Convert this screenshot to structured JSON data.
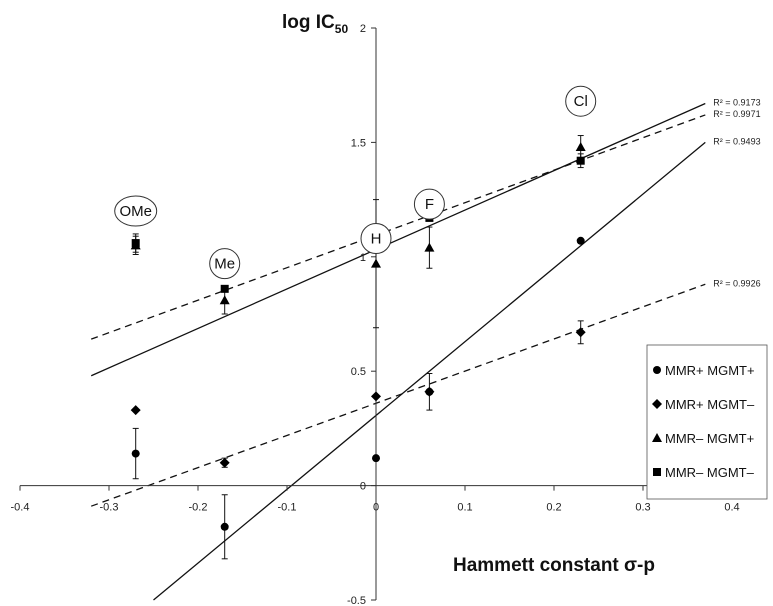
{
  "chart_data": {
    "type": "scatter",
    "xlabel": "Hammett constant σ-p",
    "ylabel": "log IC",
    "ylabel_subscript": "50",
    "xlim": [
      -0.4,
      0.4
    ],
    "ylim": [
      -0.5,
      2
    ],
    "x_ticks": [
      -0.4,
      -0.3,
      -0.2,
      -0.1,
      0,
      0.1,
      0.2,
      0.3,
      0.4
    ],
    "x_tick_labels": [
      "-0.4",
      "-0.3",
      "-0.2",
      "-0.1",
      "0",
      "0.1",
      "0.2",
      "0.3",
      "0.4"
    ],
    "y_ticks": [
      -0.5,
      0,
      0.5,
      1,
      1.5,
      2
    ],
    "y_tick_labels": [
      "-0.5",
      "0",
      "0.5",
      "1",
      "1.5",
      "2"
    ],
    "grid": false,
    "legend_position": "right",
    "substituent_labels": [
      {
        "text": "OMe",
        "x": -0.27,
        "y": 1.2
      },
      {
        "text": "Me",
        "x": -0.17,
        "y": 0.97
      },
      {
        "text": "H",
        "x": 0.0,
        "y": 1.08
      },
      {
        "text": "F",
        "x": 0.06,
        "y": 1.23
      },
      {
        "text": "Cl",
        "x": 0.23,
        "y": 1.68
      }
    ],
    "series": [
      {
        "name": "MMR+ MGMT+",
        "marker": "circle",
        "points": [
          {
            "x": -0.27,
            "y": 0.14,
            "err": 0.11
          },
          {
            "x": -0.17,
            "y": -0.18,
            "err": 0.14
          },
          {
            "x": 0.0,
            "y": 0.12,
            "err": 0.0
          },
          {
            "x": 0.06,
            "y": 0.41,
            "err": 0.0
          },
          {
            "x": 0.23,
            "y": 1.07,
            "err": 0.0
          }
        ]
      },
      {
        "name": "MMR+ MGMT–",
        "marker": "diamond",
        "points": [
          {
            "x": -0.27,
            "y": 0.33,
            "err": 0.0
          },
          {
            "x": -0.17,
            "y": 0.1,
            "err": 0.02
          },
          {
            "x": 0.0,
            "y": 0.39,
            "err": 0.0
          },
          {
            "x": 0.06,
            "y": 0.41,
            "err": 0.08
          },
          {
            "x": 0.23,
            "y": 0.67,
            "err": 0.05
          }
        ]
      },
      {
        "name": "MMR– MGMT+",
        "marker": "triangle",
        "points": [
          {
            "x": -0.27,
            "y": 1.05,
            "err": 0.04
          },
          {
            "x": -0.17,
            "y": 0.81,
            "err": 0.06
          },
          {
            "x": 0.0,
            "y": 0.97,
            "err": 0.28
          },
          {
            "x": 0.06,
            "y": 1.04,
            "err": 0.09
          },
          {
            "x": 0.23,
            "y": 1.48,
            "err": 0.05
          }
        ]
      },
      {
        "name": "MMR– MGMT–",
        "marker": "square",
        "points": [
          {
            "x": -0.27,
            "y": 1.06,
            "err": 0.04
          },
          {
            "x": -0.17,
            "y": 0.86,
            "err": 0.0
          },
          {
            "x": 0.0,
            "y": 1.08,
            "err": 0.0
          },
          {
            "x": 0.06,
            "y": 1.17,
            "err": 0.0
          },
          {
            "x": 0.23,
            "y": 1.42,
            "err": 0.03
          }
        ]
      }
    ],
    "trendlines": [
      {
        "style": "solid",
        "x1": -0.32,
        "y1": 0.48,
        "x2": 0.37,
        "y2": 1.67,
        "r2": "R² = 0.9173"
      },
      {
        "style": "dashed",
        "x1": -0.32,
        "y1": 0.64,
        "x2": 0.37,
        "y2": 1.62,
        "r2": "R² = 0.9971"
      },
      {
        "style": "solid",
        "x1": -0.25,
        "y1": -0.5,
        "x2": 0.37,
        "y2": 1.5,
        "r2": "R² = 0.9493"
      },
      {
        "style": "dashed",
        "x1": -0.32,
        "y1": -0.09,
        "x2": 0.37,
        "y2": 0.88,
        "r2": "R² = 0.9926"
      }
    ]
  }
}
